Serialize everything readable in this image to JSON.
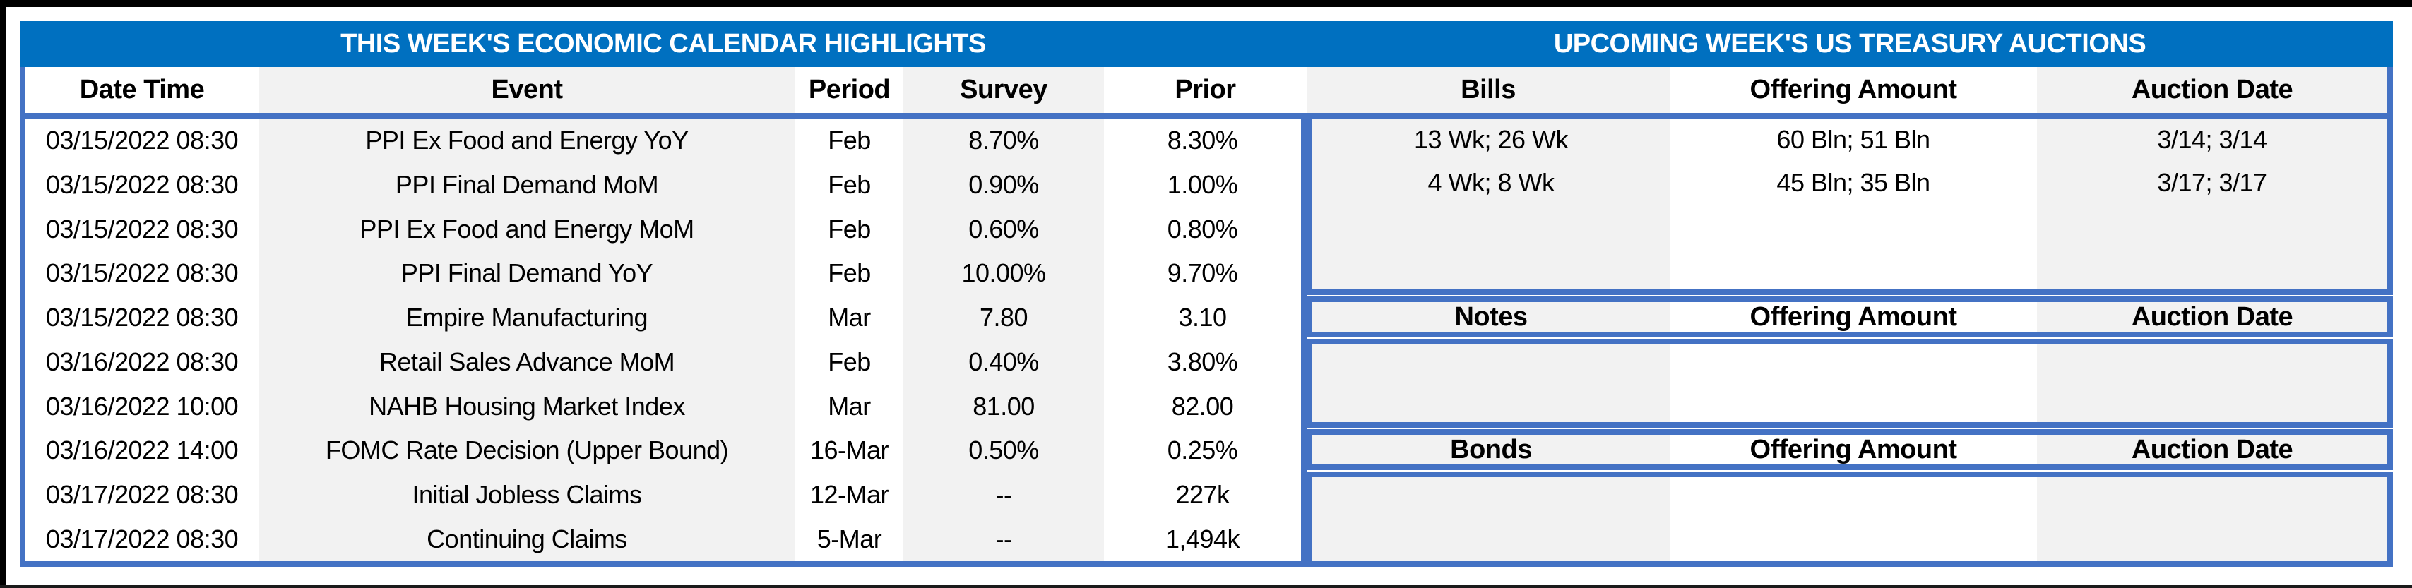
{
  "econ_calendar": {
    "title": "THIS WEEK'S ECONOMIC CALENDAR HIGHLIGHTS",
    "columns": {
      "date_time": "Date Time",
      "event": "Event",
      "period": "Period",
      "survey": "Survey",
      "prior": "Prior"
    },
    "rows": [
      {
        "date_time": "03/15/2022 08:30",
        "event": "PPI Ex Food and Energy YoY",
        "period": "Feb",
        "survey": "8.70%",
        "prior": "8.30%"
      },
      {
        "date_time": "03/15/2022 08:30",
        "event": "PPI Final Demand MoM",
        "period": "Feb",
        "survey": "0.90%",
        "prior": "1.00%"
      },
      {
        "date_time": "03/15/2022 08:30",
        "event": "PPI Ex Food and Energy MoM",
        "period": "Feb",
        "survey": "0.60%",
        "prior": "0.80%"
      },
      {
        "date_time": "03/15/2022 08:30",
        "event": "PPI Final Demand YoY",
        "period": "Feb",
        "survey": "10.00%",
        "prior": "9.70%"
      },
      {
        "date_time": "03/15/2022 08:30",
        "event": "Empire Manufacturing",
        "period": "Mar",
        "survey": "7.80",
        "prior": "3.10"
      },
      {
        "date_time": "03/16/2022 08:30",
        "event": "Retail Sales Advance MoM",
        "period": "Feb",
        "survey": "0.40%",
        "prior": "3.80%"
      },
      {
        "date_time": "03/16/2022 10:00",
        "event": "NAHB Housing Market Index",
        "period": "Mar",
        "survey": "81.00",
        "prior": "82.00"
      },
      {
        "date_time": "03/16/2022 14:00",
        "event": "FOMC Rate Decision (Upper Bound)",
        "period": "16-Mar",
        "survey": "0.50%",
        "prior": "0.25%"
      },
      {
        "date_time": "03/17/2022 08:30",
        "event": "Initial Jobless Claims",
        "period": "12-Mar",
        "survey": "--",
        "prior": "227k"
      },
      {
        "date_time": "03/17/2022 08:30",
        "event": "Continuing Claims",
        "period": "5-Mar",
        "survey": "--",
        "prior": "1,494k"
      }
    ]
  },
  "treasury_auctions": {
    "title": "UPCOMING WEEK'S US TREASURY AUCTIONS",
    "bills": {
      "header": {
        "security": "Bills",
        "offering": "Offering Amount",
        "auction": "Auction Date"
      },
      "rows": [
        {
          "security": "13 Wk; 26 Wk",
          "offering": "60 Bln; 51 Bln",
          "auction": "3/14; 3/14"
        },
        {
          "security": "4 Wk; 8 Wk",
          "offering": "45 Bln; 35 Bln",
          "auction": "3/17; 3/17"
        }
      ]
    },
    "notes": {
      "header": {
        "security": "Notes",
        "offering": "Offering Amount",
        "auction": "Auction Date"
      },
      "rows": []
    },
    "bonds": {
      "header": {
        "security": "Bonds",
        "offering": "Offering Amount",
        "auction": "Auction Date"
      },
      "rows": []
    }
  },
  "colors": {
    "title_bar_blue": "#0070C0",
    "grid_border_blue": "#4472C4",
    "column_stripe_gray": "#F2F2F2",
    "frame_black": "#000000"
  }
}
